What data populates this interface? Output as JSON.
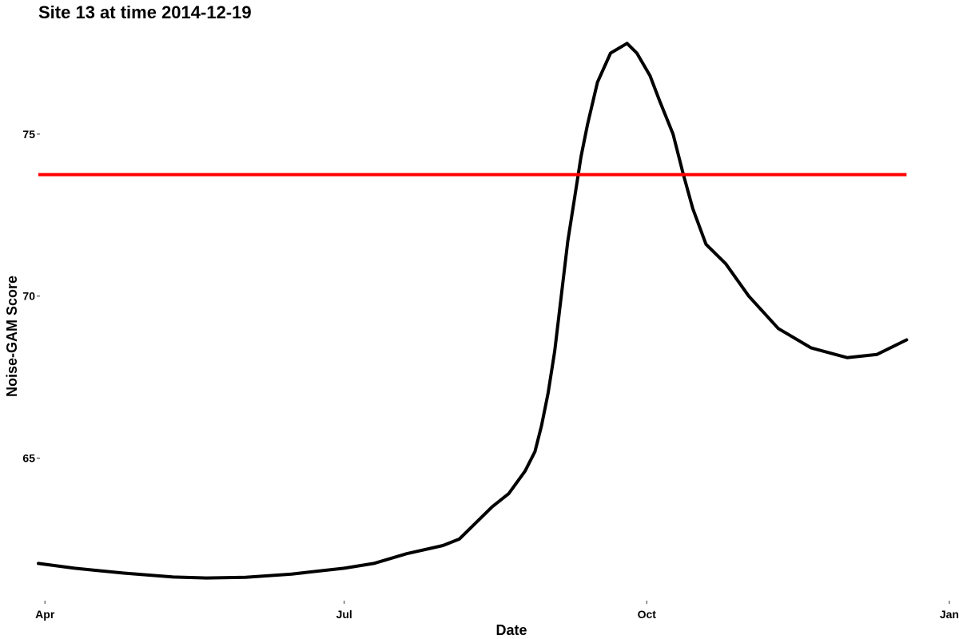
{
  "chart_data": {
    "type": "line",
    "title": "Site 13 at time 2014-12-19",
    "xlabel": "Date",
    "ylabel": "Noise-GAM Score",
    "x_ticks": [
      "Apr",
      "Jul",
      "Oct",
      "Jan"
    ],
    "y_ticks": [
      65,
      70,
      75
    ],
    "xlim": [
      "2014-03-30",
      "2015-01-02"
    ],
    "ylim": [
      60.6,
      78.4
    ],
    "grid": false,
    "series": [
      {
        "color": "#000000",
        "points": [
          [
            "2014-03-30",
            61.75
          ],
          [
            "2014-04-10",
            61.6
          ],
          [
            "2014-04-25",
            61.45
          ],
          [
            "2014-05-10",
            61.33
          ],
          [
            "2014-05-20",
            61.3
          ],
          [
            "2014-06-01",
            61.32
          ],
          [
            "2014-06-15",
            61.42
          ],
          [
            "2014-07-01",
            61.6
          ],
          [
            "2014-07-10",
            61.75
          ],
          [
            "2014-07-20",
            62.05
          ],
          [
            "2014-07-31",
            62.3
          ],
          [
            "2014-08-05",
            62.5
          ],
          [
            "2014-08-10",
            63.0
          ],
          [
            "2014-08-15",
            63.5
          ],
          [
            "2014-08-20",
            63.9
          ],
          [
            "2014-08-25",
            64.6
          ],
          [
            "2014-08-28",
            65.2
          ],
          [
            "2014-08-30",
            66.0
          ],
          [
            "2014-09-01",
            67.0
          ],
          [
            "2014-09-03",
            68.3
          ],
          [
            "2014-09-05",
            70.0
          ],
          [
            "2014-09-07",
            71.7
          ],
          [
            "2014-09-09",
            73.0
          ],
          [
            "2014-09-11",
            74.3
          ],
          [
            "2014-09-13",
            75.3
          ],
          [
            "2014-09-16",
            76.6
          ],
          [
            "2014-09-20",
            77.5
          ],
          [
            "2014-09-25",
            77.8
          ],
          [
            "2014-09-28",
            77.5
          ],
          [
            "2014-10-02",
            76.8
          ],
          [
            "2014-10-05",
            76.0
          ],
          [
            "2014-10-09",
            75.0
          ],
          [
            "2014-10-12",
            73.8
          ],
          [
            "2014-10-15",
            72.7
          ],
          [
            "2014-10-19",
            71.6
          ],
          [
            "2014-10-25",
            71.0
          ],
          [
            "2014-11-01",
            70.0
          ],
          [
            "2014-11-10",
            69.0
          ],
          [
            "2014-11-20",
            68.4
          ],
          [
            "2014-12-01",
            68.1
          ],
          [
            "2014-12-10",
            68.2
          ],
          [
            "2014-12-19",
            68.65
          ]
        ]
      }
    ],
    "threshold": {
      "value": 73.75,
      "color": "#ff0000"
    }
  }
}
